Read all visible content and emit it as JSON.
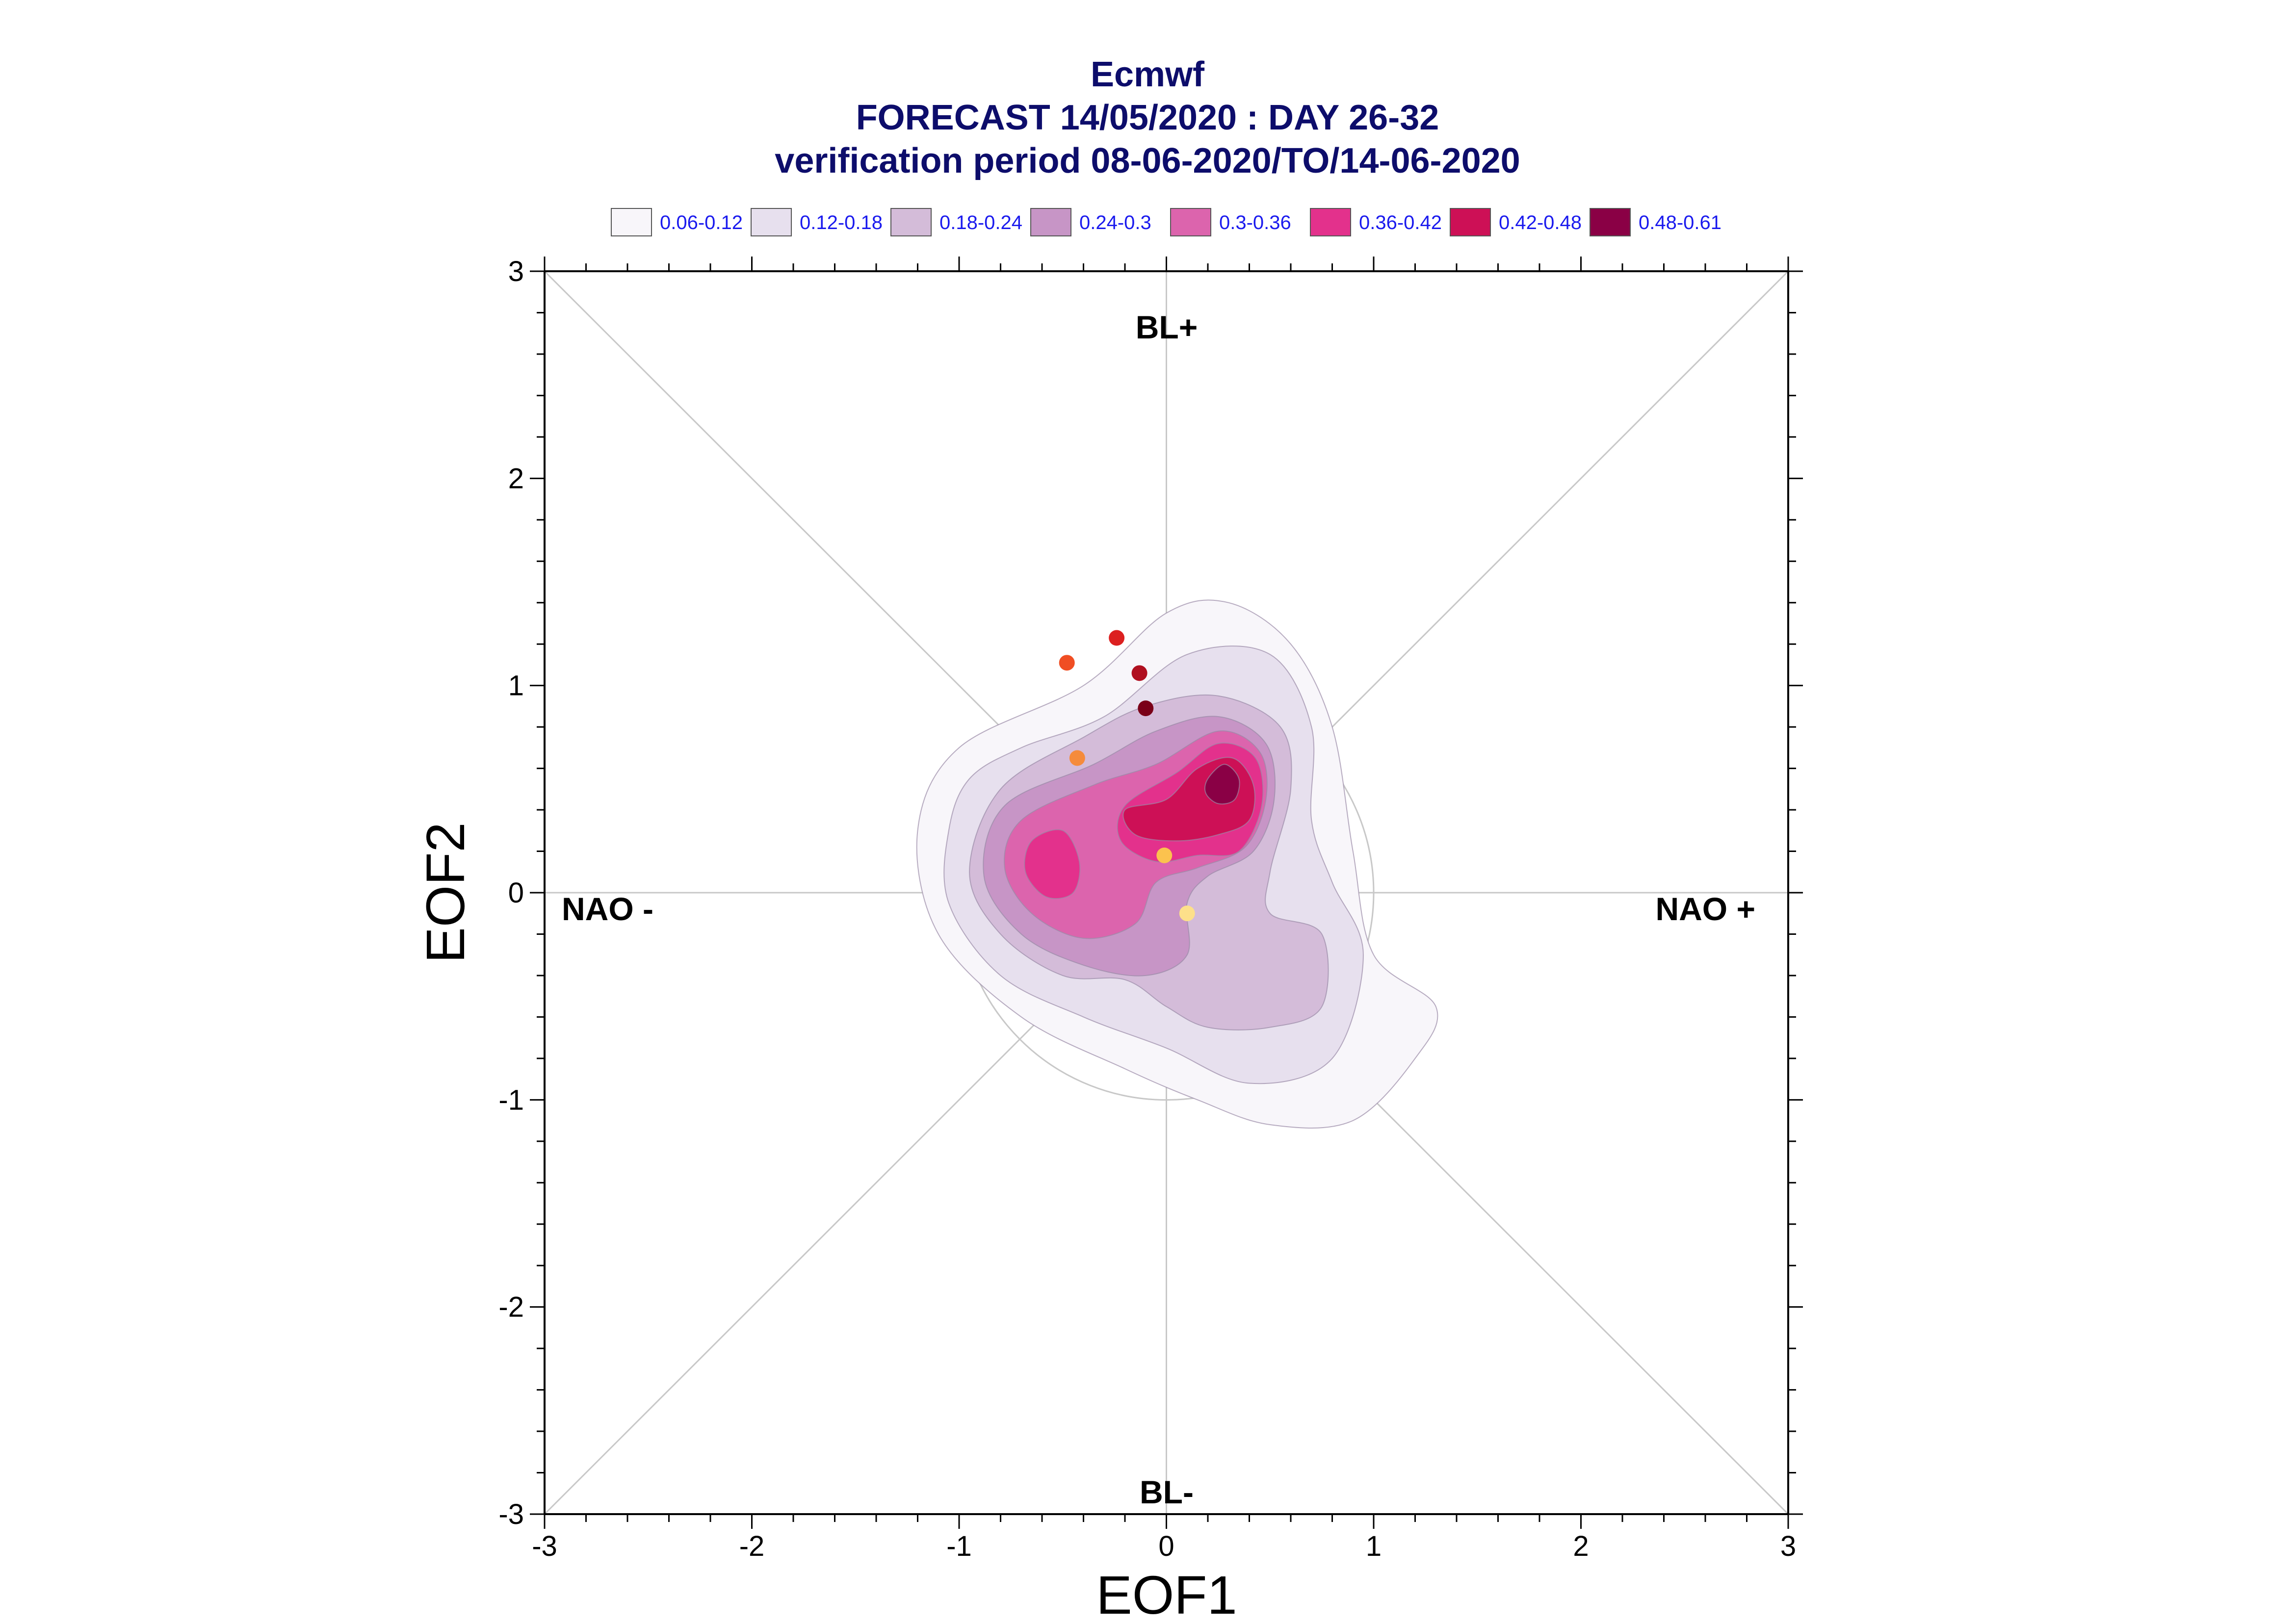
{
  "chart_data": {
    "type": "contour_scatter",
    "title": [
      "Ecmwf",
      "FORECAST 14/05/2020 : DAY 26-32",
      "verification period 08-06-2020/TO/14-06-2020"
    ],
    "xlabel": "EOF1",
    "ylabel": "EOF2",
    "xlim": [
      -3,
      3
    ],
    "ylim": [
      -3,
      3
    ],
    "xticks": [
      "-3",
      "-2",
      "-1",
      "0",
      "1",
      "2",
      "3"
    ],
    "yticks": [
      "-3",
      "-2",
      "-1",
      "0",
      "1",
      "2",
      "3"
    ],
    "regime_labels": {
      "top": "BL+",
      "bottom": "BL-",
      "left": "NAO -",
      "right": "NAO +"
    },
    "legend": {
      "placement": "top",
      "entries": [
        {
          "label": "0.06-0.12",
          "color": "#f8f6fa"
        },
        {
          "label": "0.12-0.18",
          "color": "#e7e0ee"
        },
        {
          "label": "0.18-0.24",
          "color": "#d4bcd9"
        },
        {
          "label": "0.24-0.3",
          "color": "#c795c6"
        },
        {
          "label": "0.3-0.36",
          "color": "#dc64ad"
        },
        {
          "label": "0.36-0.42",
          "color": "#e3318c"
        },
        {
          "label": "0.42-0.48",
          "color": "#cd1056"
        },
        {
          "label": "0.48-0.61",
          "color": "#8a0045"
        }
      ]
    },
    "density_contours": [
      {
        "level": "0.06-0.12",
        "color": "#f8f6fa",
        "points": [
          [
            -0.4,
            1.0
          ],
          [
            0.0,
            1.35
          ],
          [
            0.3,
            1.4
          ],
          [
            0.6,
            1.2
          ],
          [
            0.8,
            0.8
          ],
          [
            0.9,
            0.2
          ],
          [
            1.0,
            -0.3
          ],
          [
            1.3,
            -0.55
          ],
          [
            1.2,
            -0.8
          ],
          [
            0.9,
            -1.1
          ],
          [
            0.5,
            -1.12
          ],
          [
            0.15,
            -1.0
          ],
          [
            -0.2,
            -0.85
          ],
          [
            -0.7,
            -0.6
          ],
          [
            -1.1,
            -0.2
          ],
          [
            -1.2,
            0.3
          ],
          [
            -1.0,
            0.7
          ]
        ]
      },
      {
        "level": "0.12-0.18",
        "color": "#e7e0ee",
        "points": [
          [
            -0.7,
            0.7
          ],
          [
            -0.3,
            0.85
          ],
          [
            0.1,
            1.15
          ],
          [
            0.5,
            1.15
          ],
          [
            0.7,
            0.8
          ],
          [
            0.7,
            0.35
          ],
          [
            0.8,
            0.05
          ],
          [
            0.95,
            -0.3
          ],
          [
            0.8,
            -0.8
          ],
          [
            0.4,
            -0.92
          ],
          [
            0.0,
            -0.75
          ],
          [
            -0.4,
            -0.6
          ],
          [
            -0.8,
            -0.4
          ],
          [
            -1.05,
            -0.05
          ],
          [
            -1.05,
            0.3
          ],
          [
            -0.95,
            0.55
          ]
        ]
      },
      {
        "level": "0.18-0.24",
        "color": "#d4bcd9",
        "points": [
          [
            -0.8,
            0.5
          ],
          [
            -0.4,
            0.75
          ],
          [
            -0.1,
            0.9
          ],
          [
            0.25,
            0.95
          ],
          [
            0.55,
            0.8
          ],
          [
            0.6,
            0.5
          ],
          [
            0.5,
            0.1
          ],
          [
            0.5,
            -0.1
          ],
          [
            0.75,
            -0.2
          ],
          [
            0.75,
            -0.55
          ],
          [
            0.5,
            -0.65
          ],
          [
            0.2,
            -0.65
          ],
          [
            0.0,
            -0.55
          ],
          [
            -0.2,
            -0.42
          ],
          [
            -0.5,
            -0.4
          ],
          [
            -0.8,
            -0.2
          ],
          [
            -0.95,
            0.1
          ]
        ]
      },
      {
        "level": "0.24-0.3",
        "color": "#c795c6",
        "points": [
          [
            -0.78,
            0.42
          ],
          [
            -0.35,
            0.62
          ],
          [
            -0.05,
            0.78
          ],
          [
            0.25,
            0.85
          ],
          [
            0.48,
            0.72
          ],
          [
            0.52,
            0.45
          ],
          [
            0.42,
            0.2
          ],
          [
            0.2,
            0.08
          ],
          [
            0.1,
            -0.05
          ],
          [
            0.1,
            -0.3
          ],
          [
            -0.1,
            -0.4
          ],
          [
            -0.4,
            -0.35
          ],
          [
            -0.7,
            -0.2
          ],
          [
            -0.88,
            0.08
          ]
        ]
      },
      {
        "level": "0.3-0.36",
        "color": "#dc64ad",
        "points": [
          [
            -0.7,
            0.35
          ],
          [
            -0.35,
            0.52
          ],
          [
            -0.05,
            0.62
          ],
          [
            0.25,
            0.78
          ],
          [
            0.45,
            0.68
          ],
          [
            0.48,
            0.45
          ],
          [
            0.38,
            0.22
          ],
          [
            0.15,
            0.12
          ],
          [
            -0.05,
            0.05
          ],
          [
            -0.15,
            -0.15
          ],
          [
            -0.4,
            -0.22
          ],
          [
            -0.65,
            -0.1
          ],
          [
            -0.78,
            0.12
          ]
        ]
      },
      {
        "level": "0.36-0.42",
        "color": "#e3318c",
        "points": [
          [
            -0.2,
            0.42
          ],
          [
            0.05,
            0.58
          ],
          [
            0.25,
            0.72
          ],
          [
            0.43,
            0.65
          ],
          [
            0.46,
            0.42
          ],
          [
            0.35,
            0.2
          ],
          [
            0.15,
            0.18
          ],
          [
            -0.05,
            0.15
          ],
          [
            -0.22,
            0.25
          ]
        ]
      },
      {
        "level": "0.36-0.42",
        "color": "#e3318c",
        "points": [
          [
            -0.65,
            0.25
          ],
          [
            -0.5,
            0.3
          ],
          [
            -0.42,
            0.15
          ],
          [
            -0.45,
            0.0
          ],
          [
            -0.58,
            -0.02
          ],
          [
            -0.68,
            0.1
          ]
        ]
      },
      {
        "level": "0.42-0.48",
        "color": "#cd1056",
        "points": [
          [
            -0.2,
            0.4
          ],
          [
            0.0,
            0.45
          ],
          [
            0.15,
            0.6
          ],
          [
            0.32,
            0.65
          ],
          [
            0.42,
            0.52
          ],
          [
            0.4,
            0.35
          ],
          [
            0.25,
            0.28
          ],
          [
            0.05,
            0.25
          ],
          [
            -0.15,
            0.28
          ]
        ]
      },
      {
        "level": "0.48-0.61",
        "color": "#8a0045",
        "points": [
          [
            0.2,
            0.55
          ],
          [
            0.28,
            0.62
          ],
          [
            0.35,
            0.55
          ],
          [
            0.33,
            0.45
          ],
          [
            0.25,
            0.43
          ],
          [
            0.19,
            0.48
          ]
        ]
      }
    ],
    "scatter": [
      {
        "x": -0.48,
        "y": 1.11,
        "color": "#f04e23"
      },
      {
        "x": -0.24,
        "y": 1.23,
        "color": "#dc2020"
      },
      {
        "x": -0.13,
        "y": 1.06,
        "color": "#b01020"
      },
      {
        "x": -0.1,
        "y": 0.89,
        "color": "#7a0018"
      },
      {
        "x": -0.43,
        "y": 0.65,
        "color": "#f58b3c"
      },
      {
        "x": -0.01,
        "y": 0.18,
        "color": "#fbc24e"
      },
      {
        "x": 0.1,
        "y": -0.1,
        "color": "#fde08a"
      }
    ],
    "grid": false,
    "reference_lines": [
      "x=0",
      "y=0",
      "y=x",
      "y=-x",
      "circle r=1"
    ]
  }
}
